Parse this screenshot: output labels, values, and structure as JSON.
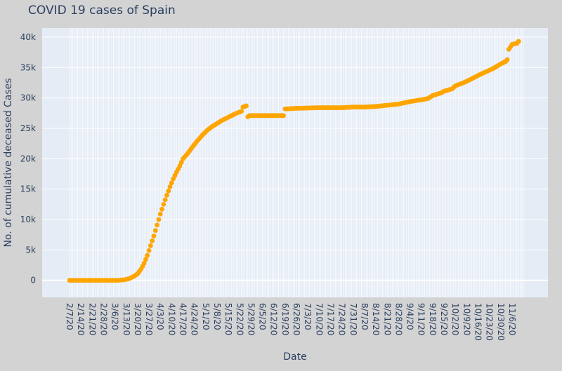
{
  "chart_data": {
    "type": "line",
    "title": "COVID 19 cases of Spain",
    "xlabel": "Date",
    "ylabel": "No. of cumulative deceased Cases",
    "start_date": "2020-02-07",
    "end_date": "2020-11-10",
    "x_tick_labels": [
      "2/7/20",
      "2/14/20",
      "2/21/20",
      "2/28/20",
      "3/6/20",
      "3/13/20",
      "3/20/20",
      "3/27/20",
      "4/3/20",
      "4/10/20",
      "4/17/20",
      "4/24/20",
      "5/1/20",
      "5/8/20",
      "5/15/20",
      "5/22/20",
      "5/29/20",
      "6/5/20",
      "6/12/20",
      "6/19/20",
      "6/26/20",
      "7/3/20",
      "7/10/20",
      "7/17/20",
      "7/24/20",
      "7/31/20",
      "8/7/20",
      "8/14/20",
      "8/21/20",
      "8/28/20",
      "9/4/20",
      "9/11/20",
      "9/18/20",
      "9/25/20",
      "10/2/20",
      "10/9/20",
      "10/16/20",
      "10/23/20",
      "10/30/20",
      "11/6/20"
    ],
    "y_tick_labels": [
      "0",
      "5k",
      "10k",
      "15k",
      "20k",
      "25k",
      "30k",
      "35k",
      "40k"
    ],
    "ylim": [
      -2800,
      41500
    ],
    "grid": true,
    "series": [
      {
        "name": "",
        "color": "#ffa500",
        "points": [
          [
            "2020-02-07",
            0
          ],
          [
            "2020-03-08",
            0
          ],
          [
            "2020-03-12",
            100
          ],
          [
            "2020-03-15",
            300
          ],
          [
            "2020-03-18",
            700
          ],
          [
            "2020-03-20",
            1100
          ],
          [
            "2020-03-22",
            1800
          ],
          [
            "2020-03-24",
            2800
          ],
          [
            "2020-03-26",
            4100
          ],
          [
            "2020-03-28",
            5700
          ],
          [
            "2020-03-30",
            7300
          ],
          [
            "2020-04-01",
            9100
          ],
          [
            "2020-04-03",
            10900
          ],
          [
            "2020-04-05",
            12500
          ],
          [
            "2020-04-07",
            14000
          ],
          [
            "2020-04-09",
            15400
          ],
          [
            "2020-04-11",
            16700
          ],
          [
            "2020-04-13",
            17800
          ],
          [
            "2020-04-15",
            18800
          ],
          [
            "2020-04-17",
            20000
          ],
          [
            "2020-04-20",
            20900
          ],
          [
            "2020-04-23",
            22000
          ],
          [
            "2020-04-26",
            23000
          ],
          [
            "2020-04-29",
            23900
          ],
          [
            "2020-05-02",
            24700
          ],
          [
            "2020-05-05",
            25300
          ],
          [
            "2020-05-08",
            25800
          ],
          [
            "2020-05-11",
            26300
          ],
          [
            "2020-05-14",
            26700
          ],
          [
            "2020-05-17",
            27100
          ],
          [
            "2020-05-20",
            27500
          ],
          [
            "2020-05-23",
            27800
          ],
          [
            "2020-05-24",
            28500
          ],
          [
            "2020-05-26",
            28700
          ],
          [
            "2020-05-27",
            26900
          ],
          [
            "2020-05-28",
            27100
          ],
          [
            "2020-06-18",
            27100
          ],
          [
            "2020-06-19",
            28200
          ],
          [
            "2020-06-26",
            28300
          ],
          [
            "2020-07-10",
            28400
          ],
          [
            "2020-07-24",
            28400
          ],
          [
            "2020-07-31",
            28500
          ],
          [
            "2020-08-07",
            28500
          ],
          [
            "2020-08-14",
            28600
          ],
          [
            "2020-08-21",
            28800
          ],
          [
            "2020-08-28",
            29000
          ],
          [
            "2020-09-04",
            29400
          ],
          [
            "2020-09-11",
            29700
          ],
          [
            "2020-09-15",
            29900
          ],
          [
            "2020-09-18",
            30400
          ],
          [
            "2020-09-23",
            30800
          ],
          [
            "2020-09-25",
            31100
          ],
          [
            "2020-09-30",
            31500
          ],
          [
            "2020-10-02",
            32000
          ],
          [
            "2020-10-07",
            32500
          ],
          [
            "2020-10-11",
            33000
          ],
          [
            "2020-10-16",
            33700
          ],
          [
            "2020-10-20",
            34200
          ],
          [
            "2020-10-25",
            34800
          ],
          [
            "2020-10-30",
            35600
          ],
          [
            "2020-11-02",
            36000
          ],
          [
            "2020-11-03",
            36300
          ],
          [
            "2020-11-04",
            38000
          ],
          [
            "2020-11-06",
            38800
          ],
          [
            "2020-11-09",
            39000
          ],
          [
            "2020-11-10",
            39300
          ]
        ]
      }
    ]
  }
}
